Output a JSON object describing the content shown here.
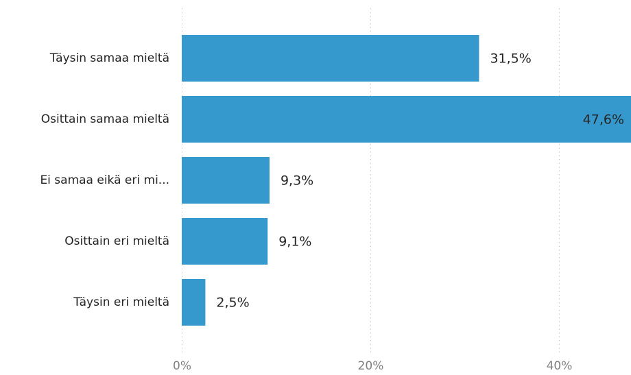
{
  "chart_data": {
    "type": "bar",
    "orientation": "horizontal",
    "categories": [
      "Täysin samaa mieltä",
      "Osittain samaa mieltä",
      "Ei samaa eikä eri mi...",
      "Osittain eri mieltä",
      "Täysin eri mieltä"
    ],
    "values": [
      31.5,
      47.6,
      9.3,
      9.1,
      2.5
    ],
    "value_labels": [
      "31,5%",
      "47,6%",
      "9,3%",
      "9,1%",
      "2,5%"
    ],
    "xlim": [
      0,
      47.6
    ],
    "x_ticks": [
      0,
      20,
      40
    ],
    "x_tick_labels": [
      "0%",
      "20%",
      "40%"
    ],
    "bar_color": "#3599CD",
    "grid": true,
    "legend": "none"
  }
}
